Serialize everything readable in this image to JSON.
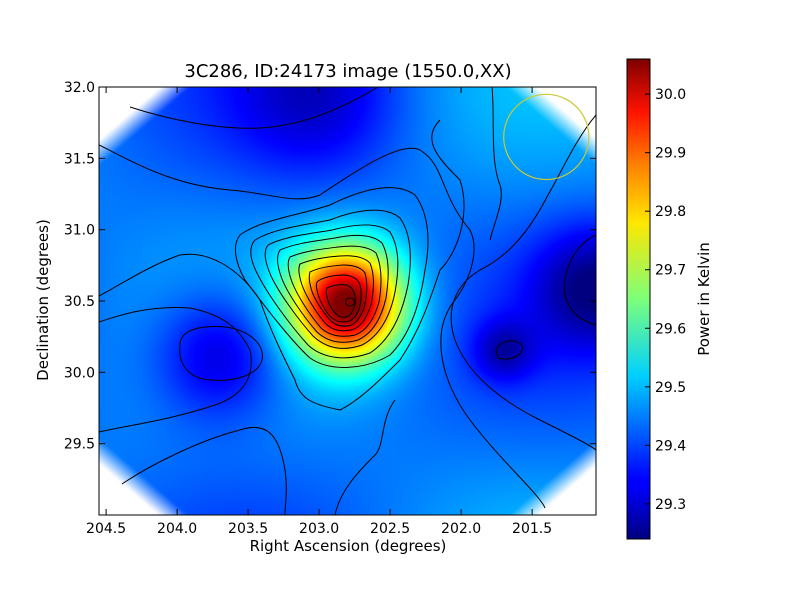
{
  "chart_data": {
    "type": "heatmap",
    "title": "3C286, ID:24173 image (1550.0,XX)",
    "xlabel": "Right Ascension (degrees)",
    "ylabel": "Declination (degrees)",
    "xlim": [
      204.55,
      201.05
    ],
    "ylim": [
      29.0,
      32.0
    ],
    "x_ticks": [
      204.5,
      204.0,
      203.5,
      203.0,
      202.5,
      202.0,
      201.5
    ],
    "x_tick_labels": [
      "204.5",
      "204.0",
      "203.5",
      "203.0",
      "202.5",
      "202.0",
      "201.5"
    ],
    "y_ticks": [
      29.5,
      30.0,
      30.5,
      31.0,
      31.5,
      32.0
    ],
    "y_tick_labels": [
      "29.5",
      "30.0",
      "30.5",
      "31.0",
      "31.5",
      "32.0"
    ],
    "colorbar": {
      "label": "Power in Kelvin",
      "min": 29.24,
      "max": 30.06,
      "ticks": [
        29.3,
        29.4,
        29.5,
        29.6,
        29.7,
        29.8,
        29.9,
        30.0
      ],
      "tick_labels": [
        "29.3",
        "29.4",
        "29.5",
        "29.6",
        "29.7",
        "29.8",
        "29.9",
        "30.0"
      ],
      "colormap": "jet"
    },
    "features": [
      {
        "ra": 202.8,
        "dec": 30.48,
        "peak": 30.06
      },
      {
        "ra": 203.7,
        "dec": 30.12,
        "peak": 29.27
      },
      {
        "ra": 201.05,
        "dec": 30.6,
        "peak": 29.27
      },
      {
        "ra": 203.0,
        "dec": 31.95,
        "peak": 29.33
      },
      {
        "ra": 201.7,
        "dec": 30.15,
        "peak": 29.32
      }
    ],
    "beam_circle": {
      "ra": 201.4,
      "dec": 31.65,
      "radius_deg": 0.3,
      "color": "#c8c832"
    },
    "grid": false,
    "legend": "none"
  }
}
